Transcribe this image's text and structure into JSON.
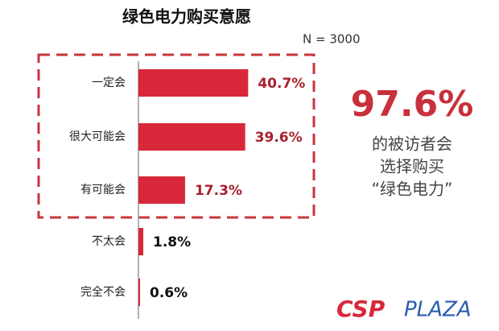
{
  "chart_data": {
    "type": "bar",
    "orientation": "horizontal",
    "title": "绿色电力购买意愿",
    "subtitle": "N = 3000",
    "categories": [
      "一定会",
      "很大可能会",
      "有可能会",
      "不太会",
      "完全不会"
    ],
    "values": [
      40.7,
      39.6,
      17.3,
      1.8,
      0.6
    ],
    "value_labels": [
      "40.7%",
      "39.6%",
      "17.3%",
      "1.8%",
      "0.6%"
    ],
    "color": "#d8283a",
    "annotation": {
      "headline": "97.6%",
      "lines": [
        "的被访者会",
        "选择购买",
        "“绿色电力”"
      ]
    },
    "watermark": {
      "brand": "CSP",
      "suffix": "PLAZA"
    }
  }
}
